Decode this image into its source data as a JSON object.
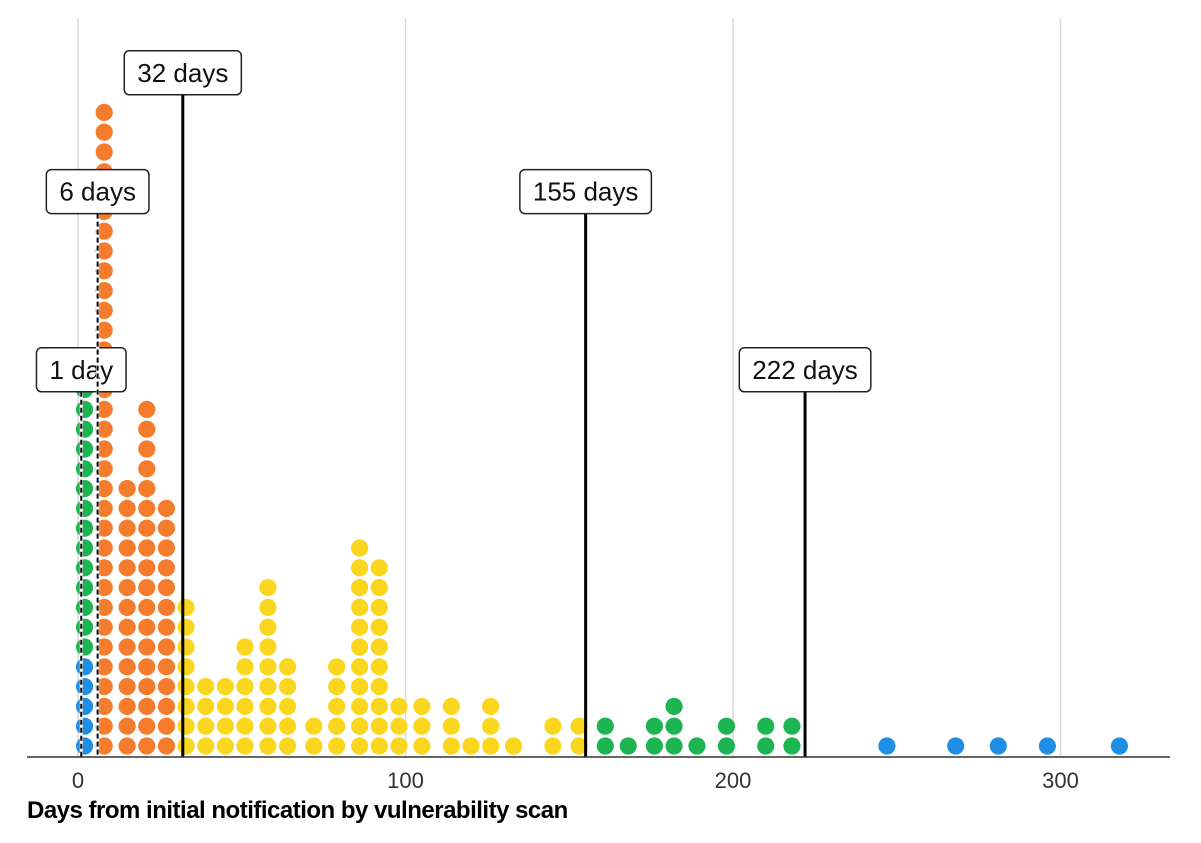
{
  "chart_data": {
    "type": "scatter",
    "subtype": "dot-plot",
    "title": "",
    "xlabel": "Days from initial notification by vulnerability scan",
    "ylabel": "",
    "xlim": [
      -8,
      335
    ],
    "xticks": [
      0,
      100,
      200,
      300
    ],
    "grid": "vertical",
    "legend": "none",
    "colors": {
      "blue": "#1f8fe5",
      "green": "#1db551",
      "orange": "#f47c2c",
      "yellow": "#fad61e",
      "axis": "#333333",
      "grid": "#d9d9d9",
      "marker": "#000000"
    },
    "series": [
      {
        "x": 2,
        "stacks": [
          {
            "color": "blue",
            "count": 5
          },
          {
            "color": "green",
            "count": 15
          }
        ]
      },
      {
        "x": 8,
        "stacks": [
          {
            "color": "orange",
            "count": 33
          }
        ]
      },
      {
        "x": 15,
        "stacks": [
          {
            "color": "orange",
            "count": 14
          }
        ]
      },
      {
        "x": 21,
        "stacks": [
          {
            "color": "orange",
            "count": 18
          }
        ]
      },
      {
        "x": 27,
        "stacks": [
          {
            "color": "orange",
            "count": 13
          }
        ]
      },
      {
        "x": 33,
        "stacks": [
          {
            "color": "yellow",
            "count": 8
          }
        ]
      },
      {
        "x": 39,
        "stacks": [
          {
            "color": "yellow",
            "count": 4
          }
        ]
      },
      {
        "x": 45,
        "stacks": [
          {
            "color": "yellow",
            "count": 4
          }
        ]
      },
      {
        "x": 51,
        "stacks": [
          {
            "color": "yellow",
            "count": 6
          }
        ]
      },
      {
        "x": 58,
        "stacks": [
          {
            "color": "yellow",
            "count": 9
          }
        ]
      },
      {
        "x": 64,
        "stacks": [
          {
            "color": "yellow",
            "count": 5
          }
        ]
      },
      {
        "x": 72,
        "stacks": [
          {
            "color": "yellow",
            "count": 2
          }
        ]
      },
      {
        "x": 79,
        "stacks": [
          {
            "color": "yellow",
            "count": 5
          }
        ]
      },
      {
        "x": 86,
        "stacks": [
          {
            "color": "yellow",
            "count": 11
          }
        ]
      },
      {
        "x": 92,
        "stacks": [
          {
            "color": "yellow",
            "count": 10
          }
        ]
      },
      {
        "x": 98,
        "stacks": [
          {
            "color": "yellow",
            "count": 3
          }
        ]
      },
      {
        "x": 105,
        "stacks": [
          {
            "color": "yellow",
            "count": 3
          }
        ]
      },
      {
        "x": 114,
        "stacks": [
          {
            "color": "yellow",
            "count": 3
          }
        ]
      },
      {
        "x": 120,
        "stacks": [
          {
            "color": "yellow",
            "count": 1
          }
        ]
      },
      {
        "x": 126,
        "stacks": [
          {
            "color": "yellow",
            "count": 3
          }
        ]
      },
      {
        "x": 133,
        "stacks": [
          {
            "color": "yellow",
            "count": 1
          }
        ]
      },
      {
        "x": 145,
        "stacks": [
          {
            "color": "yellow",
            "count": 2
          }
        ]
      },
      {
        "x": 153,
        "stacks": [
          {
            "color": "yellow",
            "count": 2
          }
        ]
      },
      {
        "x": 161,
        "stacks": [
          {
            "color": "green",
            "count": 2
          }
        ]
      },
      {
        "x": 168,
        "stacks": [
          {
            "color": "green",
            "count": 1
          }
        ]
      },
      {
        "x": 176,
        "stacks": [
          {
            "color": "green",
            "count": 2
          }
        ]
      },
      {
        "x": 182,
        "stacks": [
          {
            "color": "green",
            "count": 3
          }
        ]
      },
      {
        "x": 189,
        "stacks": [
          {
            "color": "green",
            "count": 1
          }
        ]
      },
      {
        "x": 198,
        "stacks": [
          {
            "color": "green",
            "count": 2
          }
        ]
      },
      {
        "x": 210,
        "stacks": [
          {
            "color": "green",
            "count": 2
          }
        ]
      },
      {
        "x": 218,
        "stacks": [
          {
            "color": "green",
            "count": 2
          }
        ]
      },
      {
        "x": 247,
        "stacks": [
          {
            "color": "blue",
            "count": 1
          }
        ]
      },
      {
        "x": 268,
        "stacks": [
          {
            "color": "blue",
            "count": 1
          }
        ]
      },
      {
        "x": 281,
        "stacks": [
          {
            "color": "blue",
            "count": 1
          }
        ]
      },
      {
        "x": 296,
        "stacks": [
          {
            "color": "blue",
            "count": 1
          }
        ]
      },
      {
        "x": 318,
        "stacks": [
          {
            "color": "blue",
            "count": 1
          }
        ]
      }
    ],
    "annotations": [
      {
        "x": 1,
        "label": "1 day",
        "level": 19,
        "style": "dashed"
      },
      {
        "x": 6,
        "label": "6 days",
        "level": 28,
        "style": "dashed"
      },
      {
        "x": 32,
        "label": "32 days",
        "level": 34,
        "style": "solid"
      },
      {
        "x": 155,
        "label": "155 days",
        "level": 28,
        "style": "solid"
      },
      {
        "x": 222,
        "label": "222 days",
        "level": 19,
        "style": "solid"
      }
    ]
  }
}
